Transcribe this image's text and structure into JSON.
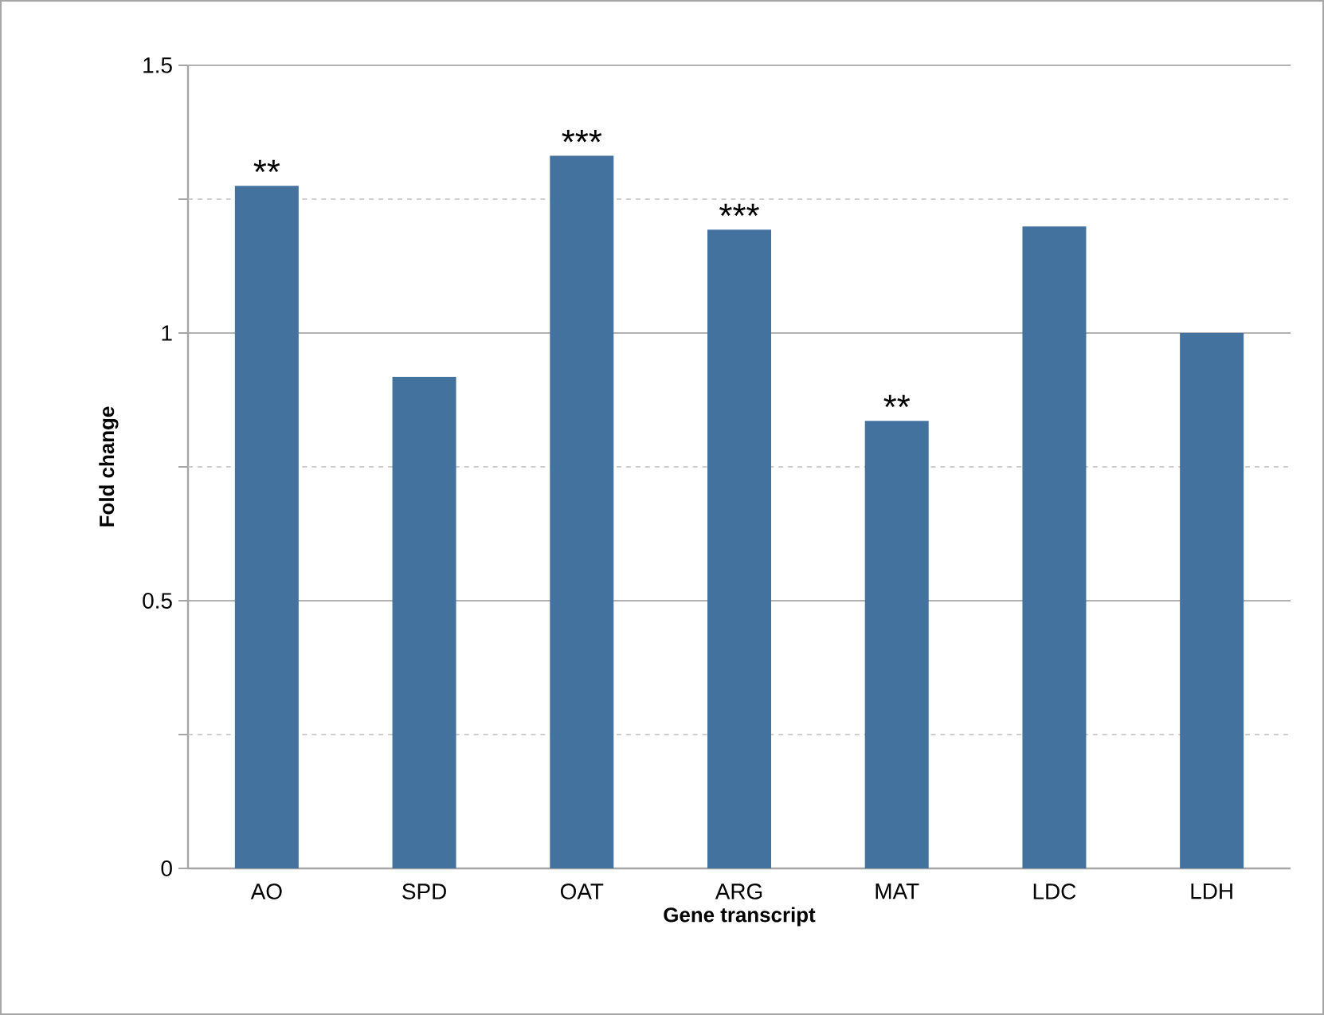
{
  "chart_data": {
    "type": "bar",
    "xlabel": "Gene transcript",
    "ylabel": "Fold change",
    "categories": [
      "AO",
      "SPD",
      "OAT",
      "ARG",
      "MAT",
      "LDC",
      "LDH"
    ],
    "values": [
      1.275,
      0.918,
      1.331,
      1.193,
      0.836,
      1.199,
      1.0
    ],
    "color": "#44729f",
    "ylim": [
      0,
      1.5
    ],
    "yticks": [
      0,
      {
        "value": 0.25,
        "label": null
      },
      0.5,
      {
        "value": 0.75,
        "label": null
      },
      1,
      {
        "value": 1.25,
        "label": null
      },
      1.5
    ],
    "grid": "y",
    "annotations": [
      {
        "text": "**",
        "x": "AO",
        "y": 1.275
      },
      {
        "text": "***",
        "x": "OAT",
        "y": 1.331
      },
      {
        "text": "***",
        "x": "ARG",
        "y": 1.193
      },
      {
        "text": "**",
        "x": "MAT",
        "y": 0.836
      }
    ]
  }
}
